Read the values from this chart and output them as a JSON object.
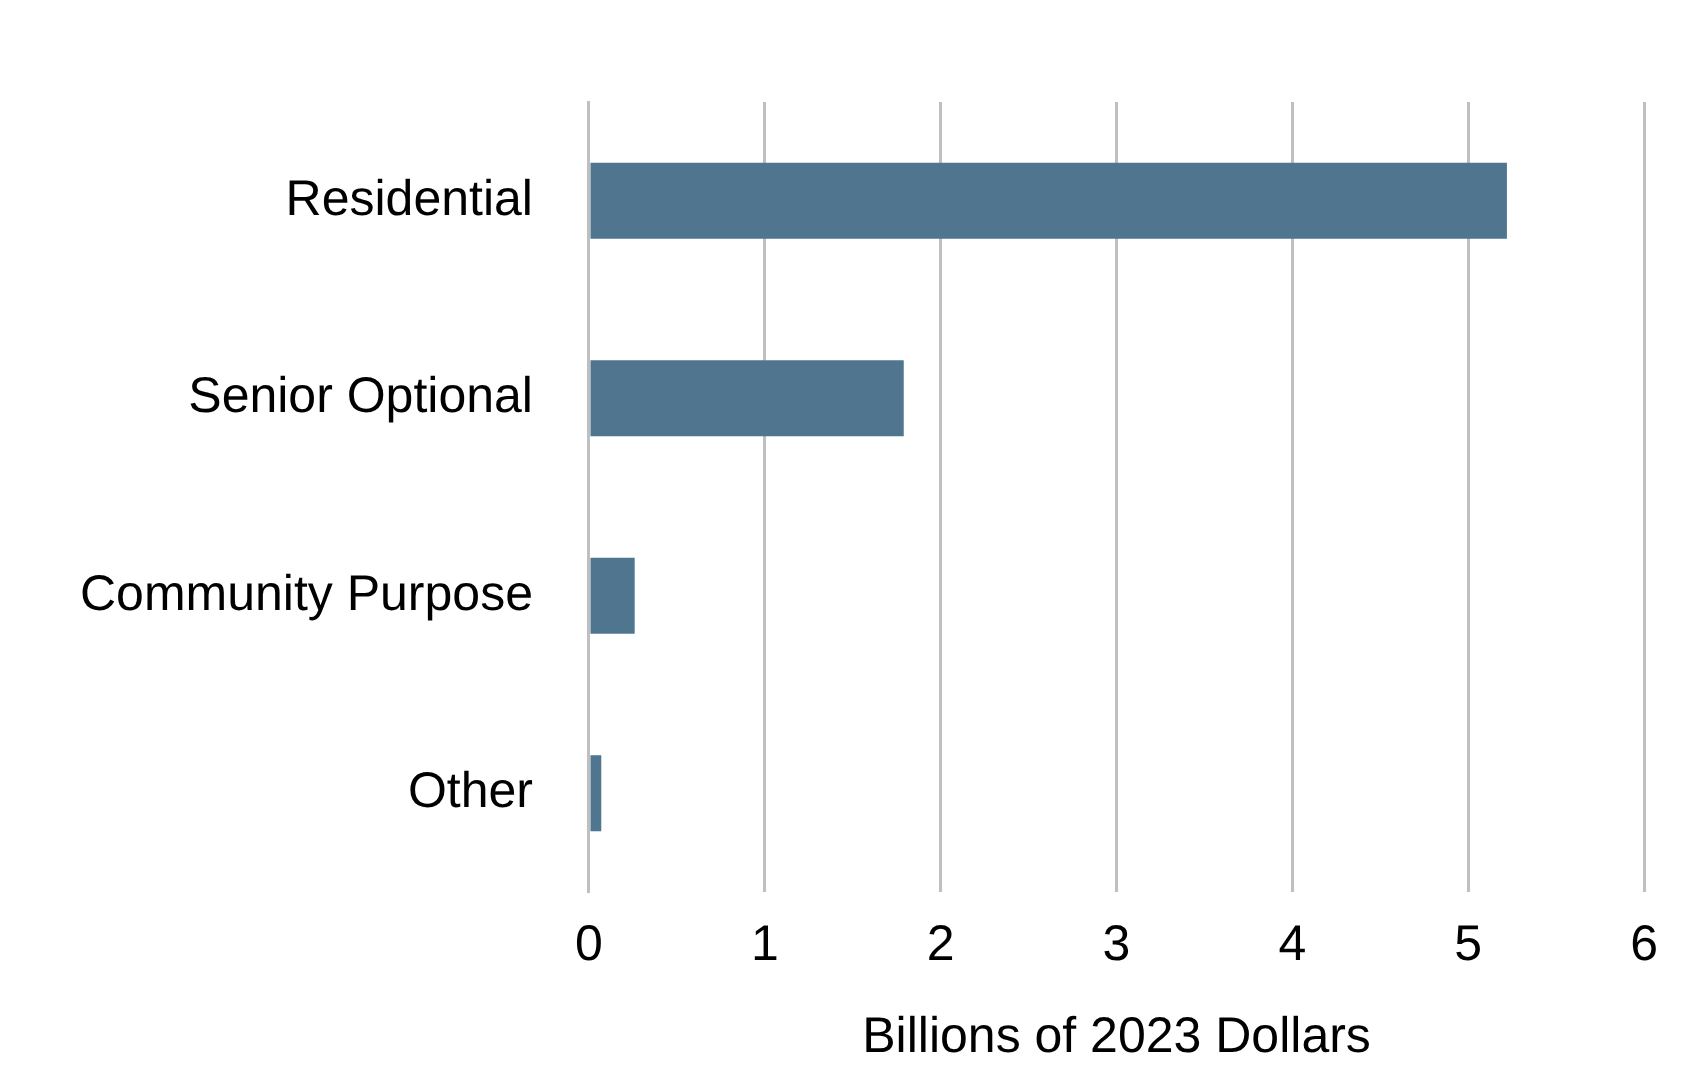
{
  "chart_data": {
    "type": "bar",
    "orientation": "horizontal",
    "categories": [
      "Residential",
      "Senior Optional",
      "Community Purpose",
      "Other"
    ],
    "values": [
      5.22,
      1.79,
      0.26,
      0.07
    ],
    "color": "#4f758f",
    "xlabel": "Billions of 2023 Dollars",
    "xlim": [
      0,
      6
    ],
    "xticks": [
      0,
      1,
      2,
      3,
      4,
      5,
      6
    ],
    "grid": "x",
    "legend": false
  }
}
